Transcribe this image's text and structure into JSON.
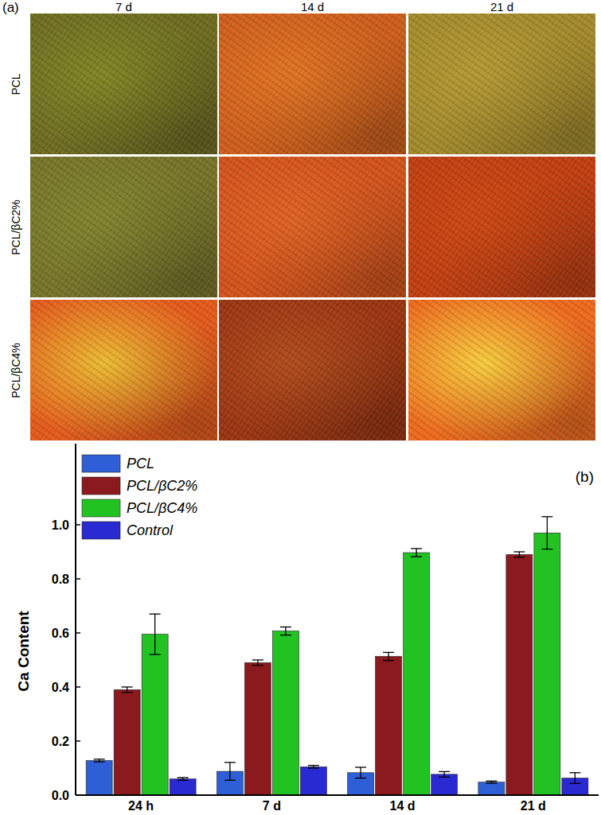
{
  "micrographs": {
    "label": "(a)",
    "columns": [
      "7 d",
      "14 d",
      "21 d"
    ],
    "rows": [
      "PCL",
      "PCL/βC2%",
      "PCL/βC4%"
    ]
  },
  "chart_data": {
    "type": "bar",
    "title": "(b)",
    "y_label": "Ca Content",
    "categories": [
      "24 h",
      "7 d",
      "14 d",
      "21 d"
    ],
    "series": [
      {
        "name": "PCL",
        "color": "#2f5fd6",
        "values": [
          0.128,
          0.088,
          0.083,
          0.048
        ],
        "errors": [
          0.005,
          0.033,
          0.02,
          0.004
        ]
      },
      {
        "name": "PCL/βC2%",
        "color": "#8b1a1f",
        "values": [
          0.39,
          0.49,
          0.513,
          0.89
        ],
        "errors": [
          0.01,
          0.01,
          0.015,
          0.01
        ]
      },
      {
        "name": "PCL/βC4%",
        "color": "#22c222",
        "values": [
          0.595,
          0.607,
          0.897,
          0.97
        ],
        "errors": [
          0.075,
          0.015,
          0.015,
          0.06
        ]
      },
      {
        "name": "Control",
        "color": "#2a2ad2",
        "values": [
          0.06,
          0.105,
          0.077,
          0.063
        ],
        "errors": [
          0.005,
          0.005,
          0.01,
          0.02
        ]
      }
    ],
    "ylim": [
      0,
      1.3
    ],
    "yticks": [
      {
        "value": 0,
        "label": "0.0"
      },
      0.2,
      0.4,
      0.6,
      0.8,
      {
        "value": 1,
        "label": "1.0"
      }
    ],
    "legend": "upper left"
  }
}
